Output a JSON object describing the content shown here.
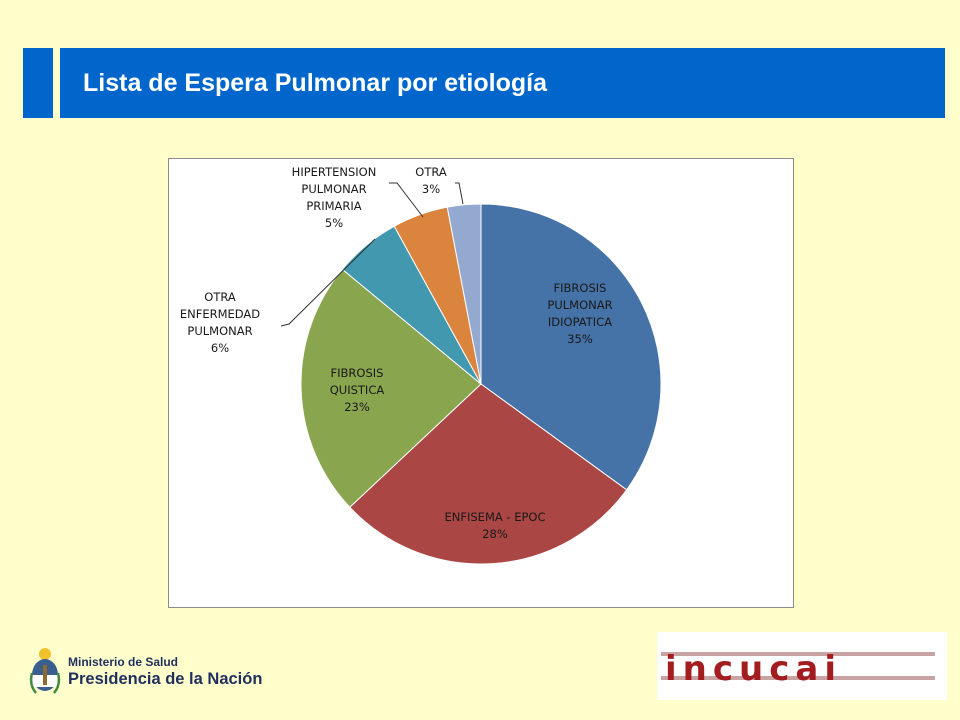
{
  "header": {
    "title": "Lista de Espera Pulmonar por etiología",
    "accent_color": "#0066cc"
  },
  "chart_data": {
    "type": "pie",
    "start": "12 o'clock, clockwise",
    "slices": [
      {
        "label_lines": [
          "FIBROSIS",
          "PULMONAR",
          "IDIOPATICA"
        ],
        "value": 35,
        "value_label": "35%",
        "color": "#4572a7",
        "label_position": "inside"
      },
      {
        "label_lines": [
          "ENFISEMA - EPOC"
        ],
        "value": 28,
        "value_label": "28%",
        "color": "#aa4643",
        "label_position": "inside"
      },
      {
        "label_lines": [
          "FIBROSIS",
          "QUISTICA"
        ],
        "value": 23,
        "value_label": "23%",
        "color": "#89a54e",
        "label_position": "inside"
      },
      {
        "label_lines": [
          "OTRA",
          "ENFERMEDAD",
          "PULMONAR"
        ],
        "value": 6,
        "value_label": "6%",
        "color": "#4198af",
        "label_position": "outside-left"
      },
      {
        "label_lines": [
          "HIPERTENSION",
          "PULMONAR",
          "PRIMARIA"
        ],
        "value": 5,
        "value_label": "5%",
        "color": "#db843d",
        "label_position": "outside-top"
      },
      {
        "label_lines": [
          "OTRA"
        ],
        "value": 3,
        "value_label": "3%",
        "color": "#93a9cf",
        "label_position": "outside-top"
      }
    ],
    "legend": "none"
  },
  "footer": {
    "ministry": "Ministerio de Salud",
    "presidency": "Presidencia de la Nación",
    "logo_text": "incucai",
    "logo_color": "#a31c1f"
  }
}
